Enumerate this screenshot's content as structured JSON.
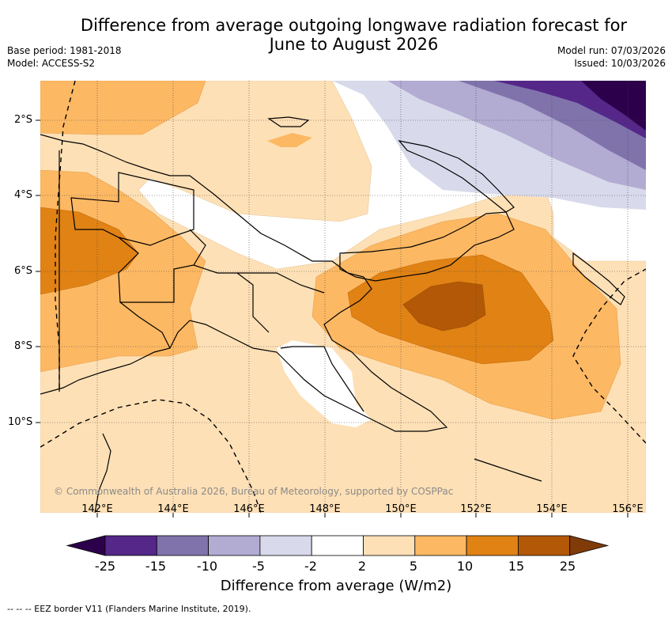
{
  "title_line1": "Difference from average outgoing longwave radiation forecast for",
  "title_line2": "June to August 2026",
  "meta": {
    "base_period": "Base period: 1981-2018",
    "model": "Model: ACCESS-S2",
    "model_run": "Model run: 07/03/2026",
    "issued": "Issued: 10/03/2026"
  },
  "map": {
    "lat_labels": [
      "2°S",
      "4°S",
      "6°S",
      "8°S",
      "10°S"
    ],
    "lon_labels": [
      "142°E",
      "144°E",
      "146°E",
      "148°E",
      "150°E",
      "152°E",
      "154°E",
      "156°E"
    ],
    "copyright": "© Commonwealth of Australia 2026, Bureau of Meteorology, supported by COSPPac"
  },
  "colorbar": {
    "labels": [
      "-25",
      "-15",
      "-10",
      "-5",
      "-2",
      "2",
      "5",
      "10",
      "15",
      "25"
    ],
    "colors": [
      "#2d004b",
      "#542788",
      "#8073ac",
      "#b2abd2",
      "#d8daeb",
      "#ffffff",
      "#fee0b6",
      "#fdb863",
      "#e08214",
      "#b35806",
      "#7f3b08"
    ],
    "title": "Difference from average (W/m2)"
  },
  "footnote": "--  --  -- EEZ border V11 (Flanders Marine Institute, 2019)."
}
